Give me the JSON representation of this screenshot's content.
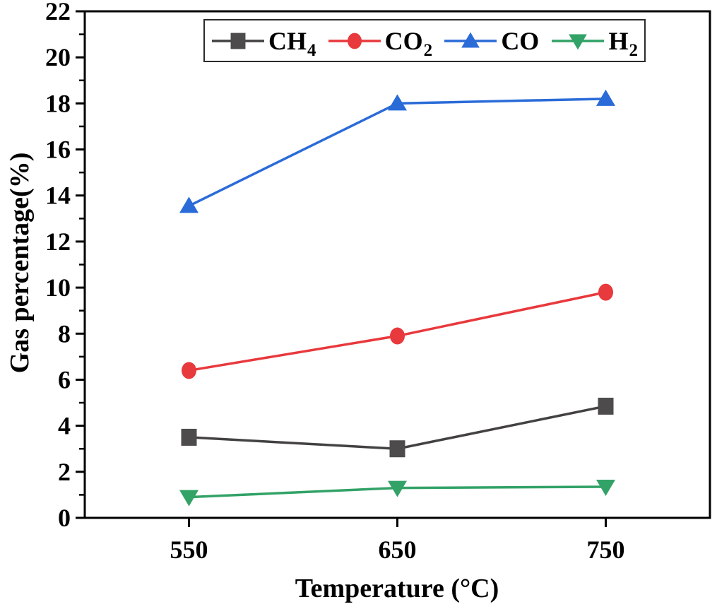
{
  "figure": {
    "background": "#ffffff",
    "spine_color": "#000000",
    "text_color": "#000000",
    "legend_border_color": "#2b2b2b"
  },
  "chart_data": {
    "type": "line",
    "title": "",
    "xlabel": "Temperature (°C)",
    "ylabel": "Gas percentage(%)",
    "x": [
      550,
      650,
      750
    ],
    "xtick_labels": [
      "550",
      "650",
      "750"
    ],
    "ytick_labels": [
      "0",
      "2",
      "4",
      "6",
      "8",
      "10",
      "12",
      "14",
      "16",
      "18",
      "20",
      "22"
    ],
    "xlim": [
      500,
      800
    ],
    "ylim": [
      0,
      22
    ],
    "ytick_major_step": 2,
    "ytick_minor_step": 1,
    "grid": false,
    "legend": {
      "position": "top-center-inside"
    },
    "series": [
      {
        "name": "CH4",
        "label_main": "CH",
        "label_sub": "4",
        "marker": "square",
        "color": "#4d4b4c",
        "line_color": "#434142",
        "values": [
          3.5,
          3.0,
          4.85
        ]
      },
      {
        "name": "CO2",
        "label_main": "CO",
        "label_sub": "2",
        "marker": "circle",
        "color": "#e8393d",
        "line_color": "#e8393d",
        "values": [
          6.4,
          7.9,
          9.8
        ]
      },
      {
        "name": "CO",
        "label_main": "CO",
        "label_sub": "",
        "marker": "triangle-up",
        "color": "#2a6bd8",
        "line_color": "#2a6bd8",
        "values": [
          13.55,
          18.0,
          18.2
        ]
      },
      {
        "name": "H2",
        "label_main": "H",
        "label_sub": "2",
        "marker": "triangle-down",
        "color": "#32a267",
        "line_color": "#32a267",
        "values": [
          0.9,
          1.3,
          1.35
        ]
      }
    ]
  }
}
